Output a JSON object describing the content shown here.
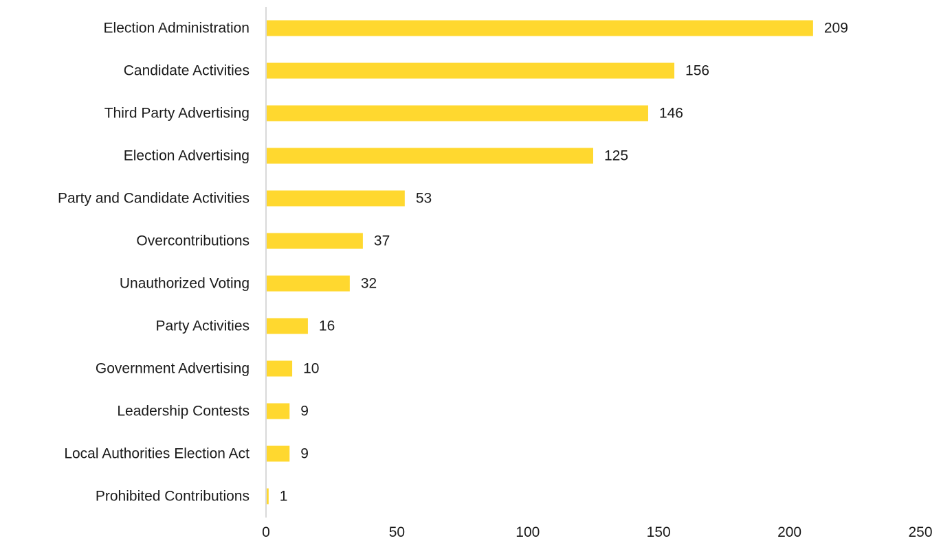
{
  "chart_data": {
    "type": "bar",
    "orientation": "horizontal",
    "title": "",
    "xlabel": "",
    "ylabel": "",
    "categories": [
      "Election Administration",
      "Candidate Activities",
      "Third Party Advertising",
      "Election Advertising",
      "Party and Candidate Activities",
      "Overcontributions",
      "Unauthorized Voting",
      "Party Activities",
      "Government Advertising",
      "Leadership Contests",
      "Local Authorities Election Act",
      "Prohibited Contributions"
    ],
    "values": [
      209,
      156,
      146,
      125,
      53,
      37,
      32,
      16,
      10,
      9,
      9,
      1
    ],
    "xlim": [
      0,
      250
    ],
    "xticks": [
      0,
      50,
      100,
      150,
      200,
      250
    ],
    "grid": false,
    "legend": "none",
    "bar_color": "#FFD82F",
    "axis_color": "#D9D9D9"
  }
}
